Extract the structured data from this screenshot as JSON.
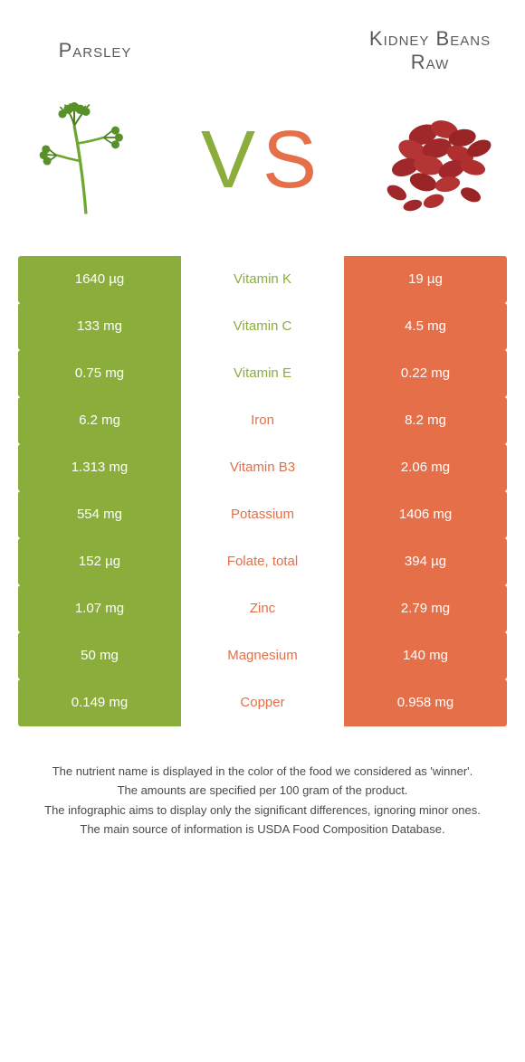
{
  "food1": {
    "name": "Parsley",
    "color": "#8aad3c"
  },
  "food2": {
    "name": "Kidney Beans Raw",
    "color": "#e46f48"
  },
  "rows": [
    {
      "nutrient": "Vitamin K",
      "v1": "1640 µg",
      "v2": "19 µg",
      "winner": 1
    },
    {
      "nutrient": "Vitamin C",
      "v1": "133 mg",
      "v2": "4.5 mg",
      "winner": 1
    },
    {
      "nutrient": "Vitamin E",
      "v1": "0.75 mg",
      "v2": "0.22 mg",
      "winner": 1
    },
    {
      "nutrient": "Iron",
      "v1": "6.2 mg",
      "v2": "8.2 mg",
      "winner": 2
    },
    {
      "nutrient": "Vitamin B3",
      "v1": "1.313 mg",
      "v2": "2.06 mg",
      "winner": 2
    },
    {
      "nutrient": "Potassium",
      "v1": "554 mg",
      "v2": "1406 mg",
      "winner": 2
    },
    {
      "nutrient": "Folate, total",
      "v1": "152 µg",
      "v2": "394 µg",
      "winner": 2
    },
    {
      "nutrient": "Zinc",
      "v1": "1.07 mg",
      "v2": "2.79 mg",
      "winner": 2
    },
    {
      "nutrient": "Magnesium",
      "v1": "50 mg",
      "v2": "140 mg",
      "winner": 2
    },
    {
      "nutrient": "Copper",
      "v1": "0.149 mg",
      "v2": "0.958 mg",
      "winner": 2
    }
  ],
  "footer": [
    "The nutrient name is displayed in the color of the food we considered as 'winner'.",
    "The amounts are specified per 100 gram of the product.",
    "The infographic aims to display only the significant differences, ignoring minor ones.",
    "The main source of information is USDA Food Composition Database."
  ]
}
